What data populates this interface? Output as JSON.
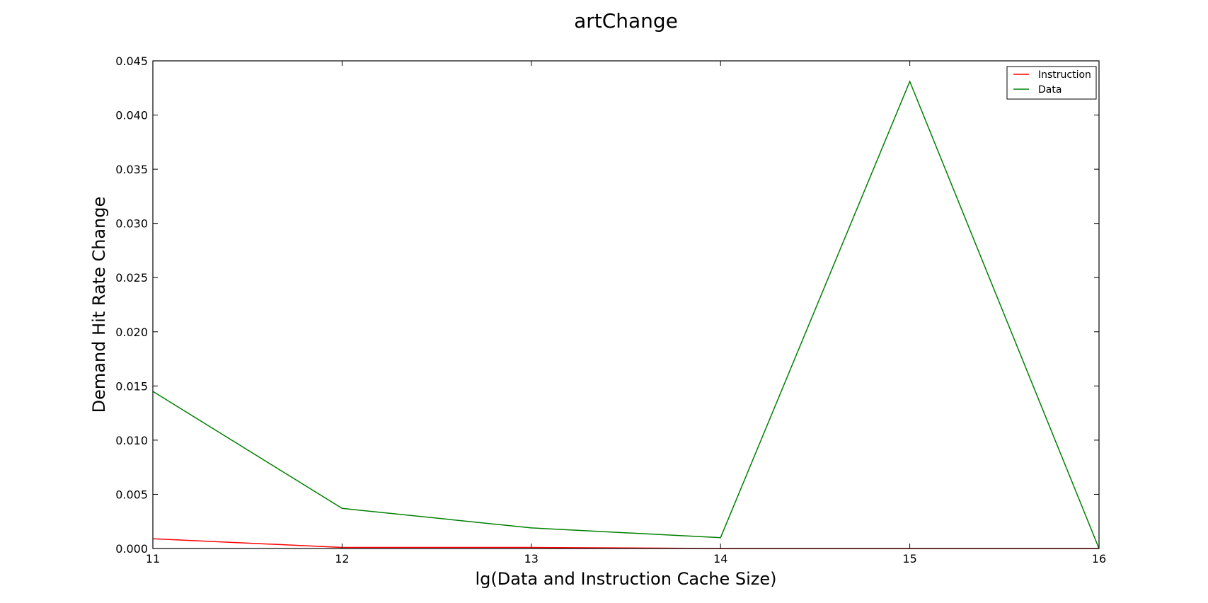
{
  "chart_data": {
    "type": "line",
    "title": "artChange",
    "xlabel": "lg(Data and Instruction Cache Size)",
    "ylabel": "Demand Hit Rate Change",
    "x": [
      11,
      12,
      13,
      14,
      15,
      16
    ],
    "xlim": [
      11,
      16
    ],
    "ylim": [
      0,
      0.045
    ],
    "x_ticks": [
      "11",
      "12",
      "13",
      "14",
      "15",
      "16"
    ],
    "y_ticks": [
      "0.000",
      "0.005",
      "0.010",
      "0.015",
      "0.020",
      "0.025",
      "0.030",
      "0.035",
      "0.040",
      "0.045"
    ],
    "grid": false,
    "legend_position": "top-right",
    "series": [
      {
        "name": "Instruction",
        "color": "#ff0000",
        "values": [
          0.0009,
          0.0001,
          0.0001,
          0.0,
          0.0,
          0.0
        ]
      },
      {
        "name": "Data",
        "color": "#008000",
        "values": [
          0.0145,
          0.0037,
          0.0019,
          0.001,
          0.0431,
          0.0
        ]
      }
    ]
  }
}
